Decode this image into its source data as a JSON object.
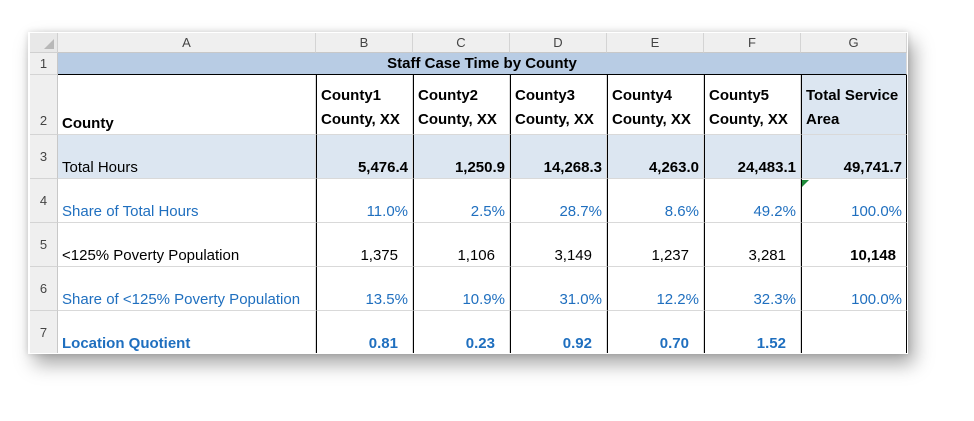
{
  "columns": [
    "A",
    "B",
    "C",
    "D",
    "E",
    "F",
    "G"
  ],
  "rows": [
    "1",
    "2",
    "3",
    "4",
    "5",
    "6",
    "7"
  ],
  "title": "Staff Case Time by County",
  "header": {
    "county_label": "County",
    "counties": [
      {
        "line1": "County1",
        "line2": "County, XX"
      },
      {
        "line1": "County2",
        "line2": "County, XX"
      },
      {
        "line1": "County3",
        "line2": "County, XX"
      },
      {
        "line1": "County4",
        "line2": "County, XX"
      },
      {
        "line1": "County5",
        "line2": "County, XX"
      }
    ],
    "total_line1": "Total Service",
    "total_line2": "Area"
  },
  "data_rows": [
    {
      "label": "Total Hours",
      "values": [
        "5,476.4",
        "1,250.9",
        "14,268.3",
        "4,263.0",
        "24,483.1",
        "49,741.7"
      ]
    },
    {
      "label": "Share of Total Hours",
      "values": [
        "11.0%",
        "2.5%",
        "28.7%",
        "8.6%",
        "49.2%",
        "100.0%"
      ]
    },
    {
      "label": "<125% Poverty Population",
      "values": [
        "1,375",
        "1,106",
        "3,149",
        "1,237",
        "3,281",
        "10,148"
      ]
    },
    {
      "label": "Share of <125% Poverty Population",
      "values": [
        "13.5%",
        "10.9%",
        "31.0%",
        "12.2%",
        "32.3%",
        "100.0%"
      ]
    },
    {
      "label": "Location Quotient",
      "values": [
        "0.81",
        "0.23",
        "0.92",
        "0.70",
        "1.52",
        ""
      ]
    }
  ],
  "colors": {
    "title_fill": "#b8cce4",
    "shade_fill": "#dce6f1",
    "blue_text": "#1f6fbf"
  }
}
